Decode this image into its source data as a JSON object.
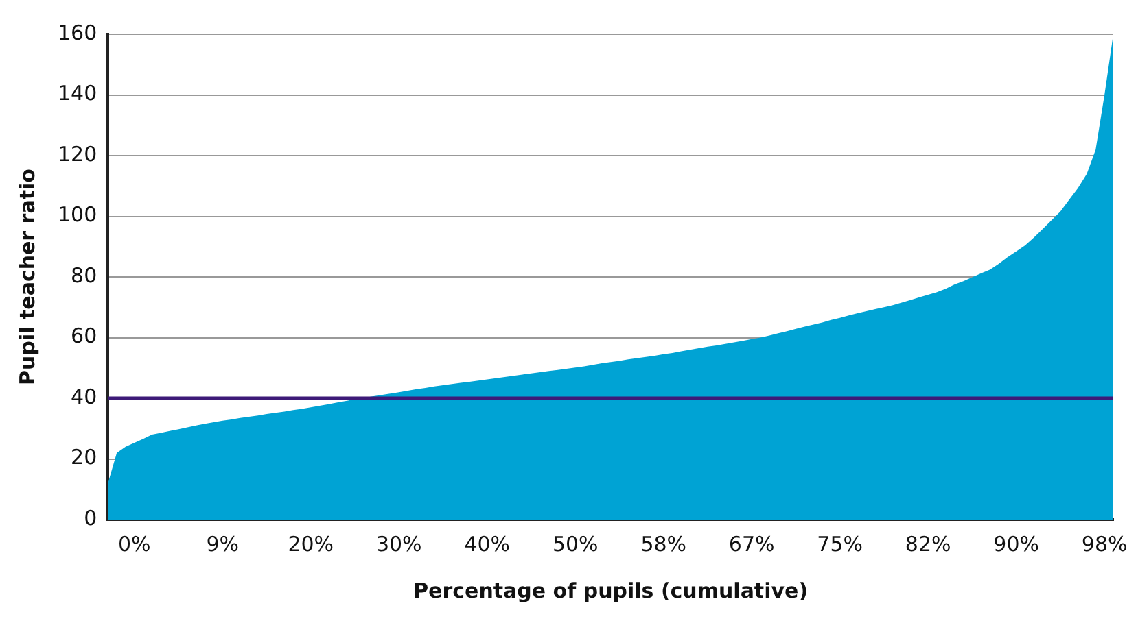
{
  "chart_data": {
    "type": "area",
    "xlabel": "Percentage of pupils (cumulative)",
    "ylabel": "Pupil teacher ratio",
    "categories": [
      null,
      null,
      null,
      "0%",
      null,
      null,
      null,
      null,
      null,
      null,
      null,
      null,
      null,
      "9%",
      null,
      null,
      null,
      null,
      null,
      null,
      null,
      null,
      null,
      "20%",
      null,
      null,
      null,
      null,
      null,
      null,
      null,
      null,
      null,
      "30%",
      null,
      null,
      null,
      null,
      null,
      null,
      null,
      null,
      null,
      "40%",
      null,
      null,
      null,
      null,
      null,
      null,
      null,
      null,
      null,
      "50%",
      null,
      null,
      null,
      null,
      null,
      null,
      null,
      null,
      null,
      "58%",
      null,
      null,
      null,
      null,
      null,
      null,
      null,
      null,
      null,
      "67%",
      null,
      null,
      null,
      null,
      null,
      null,
      null,
      null,
      null,
      "75%",
      null,
      null,
      null,
      null,
      null,
      null,
      null,
      null,
      null,
      "82%",
      null,
      null,
      null,
      null,
      null,
      null,
      null,
      null,
      null,
      "90%",
      null,
      null,
      null,
      null,
      null,
      null,
      null,
      null,
      null,
      "98%",
      null
    ],
    "series": [
      {
        "color": "#00a3d4",
        "values": [
          12,
          22,
          24,
          25.3,
          26.6,
          28,
          28.6,
          29.2,
          29.8,
          30.4,
          31,
          31.6,
          32.1,
          32.6,
          33,
          33.5,
          33.9,
          34.3,
          34.8,
          35.2,
          35.6,
          36.1,
          36.5,
          37,
          37.5,
          38,
          38.6,
          39.1,
          39.6,
          40.1,
          40.6,
          41.1,
          41.5,
          42,
          42.5,
          43,
          43.4,
          43.9,
          44.3,
          44.7,
          45.1,
          45.4,
          45.8,
          46.2,
          46.6,
          47,
          47.4,
          47.8,
          48.2,
          48.6,
          49,
          49.3,
          49.7,
          50.1,
          50.5,
          51,
          51.5,
          51.9,
          52.3,
          52.8,
          53.2,
          53.6,
          54,
          54.5,
          54.9,
          55.5,
          56,
          56.5,
          57,
          57.4,
          57.9,
          58.4,
          58.9,
          59.5,
          60,
          60.7,
          61.4,
          62.1,
          62.9,
          63.6,
          64.3,
          65,
          65.8,
          66.5,
          67.3,
          68,
          68.7,
          69.4,
          70,
          70.7,
          71.5,
          72.4,
          73.3,
          74.1,
          75,
          76.1,
          77.5,
          78.6,
          79.9,
          81.2,
          82.4,
          84.3,
          86.5,
          88.4,
          90.4,
          93,
          95.8,
          98.7,
          101.6,
          105.5,
          109.3,
          114,
          122,
          140,
          160
        ]
      }
    ],
    "ylim": [
      0,
      160
    ],
    "yticks": [
      0,
      20,
      40,
      60,
      80,
      100,
      120,
      140,
      160
    ],
    "grid": "y",
    "legend": false,
    "ref_lines": [
      {
        "axis": "y",
        "value": 40,
        "color": "#3d1a78"
      }
    ]
  }
}
